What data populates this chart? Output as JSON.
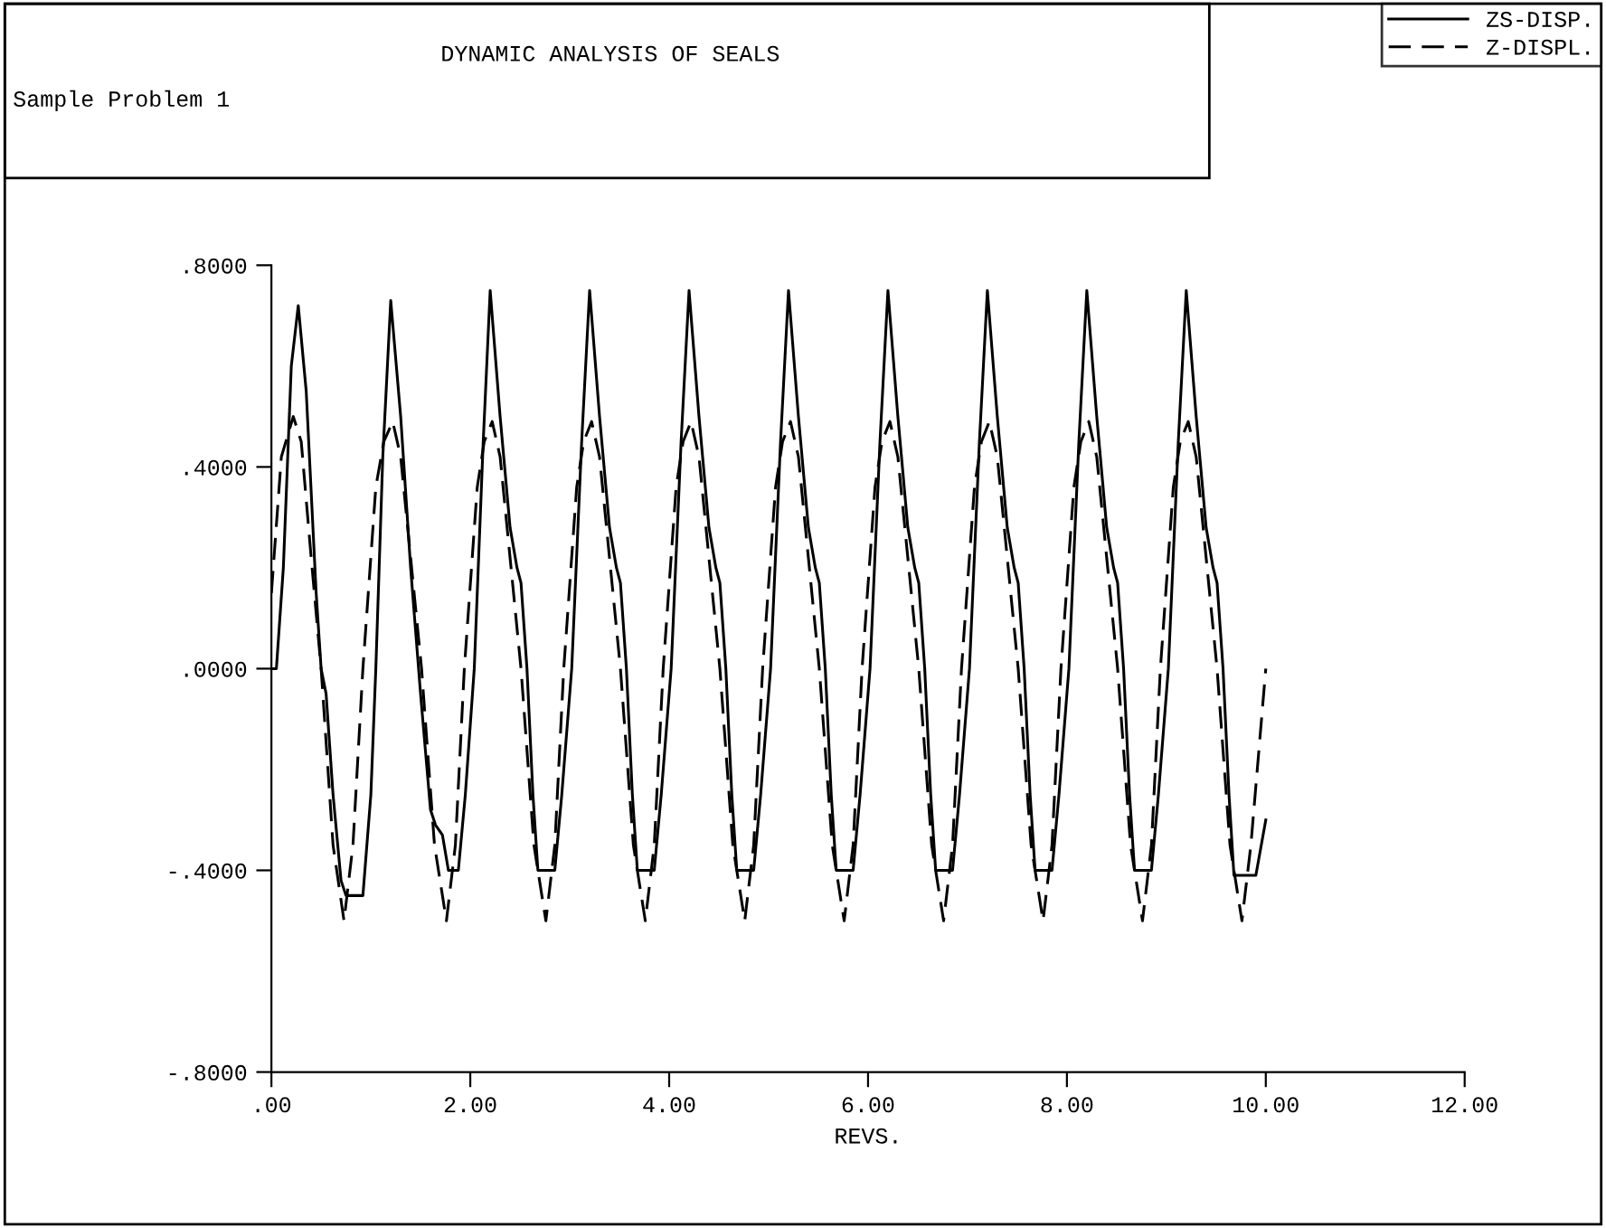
{
  "chart_data": {
    "type": "line",
    "title": "DYNAMIC ANALYSIS OF SEALS",
    "subtitle": "Sample Problem 1",
    "xlabel": "REVS.",
    "xlim": [
      0,
      12
    ],
    "xticks": [
      {
        "value": 0,
        "label": ".00"
      },
      {
        "value": 2,
        "label": "2.00"
      },
      {
        "value": 4,
        "label": "4.00"
      },
      {
        "value": 6,
        "label": "6.00"
      },
      {
        "value": 8,
        "label": "8.00"
      },
      {
        "value": 10,
        "label": "10.00"
      },
      {
        "value": 12,
        "label": "12.00"
      }
    ],
    "ylim": [
      -0.8,
      0.8
    ],
    "yticks": [
      {
        "value": -0.8,
        "label": "-.8000"
      },
      {
        "value": -0.4,
        "label": "-.4000"
      },
      {
        "value": 0,
        "label": ".0000"
      },
      {
        "value": 0.4,
        "label": ".4000"
      },
      {
        "value": 0.8,
        "label": ".8000"
      }
    ],
    "grid": false,
    "legend": "top right",
    "marker": "none",
    "series": [
      {
        "name": "ZS-DISP.",
        "color": "#000000",
        "line_style": "solid",
        "x": [
          0,
          0.05,
          0.12,
          0.2,
          0.27,
          0.35,
          0.45,
          0.5,
          0.55,
          0.62,
          0.7,
          0.75,
          0.92,
          1.0,
          1.05,
          1.12,
          1.2,
          1.3,
          1.4,
          1.5,
          1.6,
          1.65,
          1.72,
          1.78,
          1.88,
          1.95,
          2.04,
          2.13,
          2.2,
          2.3,
          2.4,
          2.47,
          2.51,
          2.57,
          2.63,
          2.68,
          2.85,
          2.92,
          3.02,
          3.12,
          3.2,
          3.3,
          3.4,
          3.47,
          3.51,
          3.57,
          3.63,
          3.68,
          3.85,
          3.92,
          4.02,
          4.12,
          4.2,
          4.3,
          4.4,
          4.47,
          4.51,
          4.57,
          4.63,
          4.68,
          4.85,
          4.92,
          5.02,
          5.12,
          5.2,
          5.3,
          5.4,
          5.47,
          5.51,
          5.57,
          5.63,
          5.68,
          5.85,
          5.92,
          6.02,
          6.12,
          6.2,
          6.3,
          6.4,
          6.47,
          6.51,
          6.57,
          6.63,
          6.68,
          6.85,
          6.92,
          7.02,
          7.12,
          7.2,
          7.3,
          7.4,
          7.47,
          7.51,
          7.57,
          7.63,
          7.68,
          7.85,
          7.92,
          8.02,
          8.12,
          8.2,
          8.3,
          8.4,
          8.47,
          8.51,
          8.57,
          8.63,
          8.68,
          8.85,
          8.92,
          9.02,
          9.12,
          9.2,
          9.3,
          9.4,
          9.47,
          9.51,
          9.57,
          9.63,
          9.68,
          9.9,
          10.0
        ],
        "values": [
          0,
          0,
          0.2,
          0.6,
          0.72,
          0.55,
          0.15,
          0,
          -0.05,
          -0.25,
          -0.42,
          -0.45,
          -0.45,
          -0.25,
          0,
          0.42,
          0.73,
          0.5,
          0.2,
          -0.05,
          -0.28,
          -0.31,
          -0.33,
          -0.4,
          -0.4,
          -0.25,
          0,
          0.45,
          0.75,
          0.5,
          0.28,
          0.2,
          0.17,
          0,
          -0.25,
          -0.4,
          -0.4,
          -0.25,
          0,
          0.45,
          0.75,
          0.5,
          0.28,
          0.2,
          0.17,
          0,
          -0.25,
          -0.4,
          -0.4,
          -0.25,
          0,
          0.45,
          0.75,
          0.5,
          0.28,
          0.2,
          0.17,
          0,
          -0.25,
          -0.4,
          -0.4,
          -0.25,
          0,
          0.45,
          0.75,
          0.5,
          0.28,
          0.2,
          0.17,
          0,
          -0.25,
          -0.4,
          -0.4,
          -0.25,
          0,
          0.45,
          0.75,
          0.5,
          0.28,
          0.2,
          0.17,
          0,
          -0.25,
          -0.4,
          -0.4,
          -0.25,
          0,
          0.45,
          0.75,
          0.5,
          0.28,
          0.2,
          0.17,
          0,
          -0.25,
          -0.4,
          -0.4,
          -0.25,
          0,
          0.45,
          0.75,
          0.5,
          0.28,
          0.2,
          0.17,
          0,
          -0.25,
          -0.4,
          -0.4,
          -0.25,
          0,
          0.45,
          0.75,
          0.5,
          0.28,
          0.2,
          0.17,
          0,
          -0.25,
          -0.41,
          -0.41,
          -0.3
        ]
      },
      {
        "name": "Z-DISPL.",
        "color": "#000000",
        "line_style": "dashed",
        "x": [
          0,
          0.1,
          0.22,
          0.3,
          0.4,
          0.5,
          0.62,
          0.73,
          0.82,
          0.92,
          1.05,
          1.13,
          1.22,
          1.3,
          1.4,
          1.51,
          1.64,
          1.76,
          1.85,
          1.94,
          2.07,
          2.14,
          2.22,
          2.3,
          2.4,
          2.51,
          2.64,
          2.76,
          2.85,
          2.94,
          3.07,
          3.14,
          3.22,
          3.3,
          3.4,
          3.51,
          3.64,
          3.76,
          3.85,
          3.94,
          4.07,
          4.14,
          4.22,
          4.3,
          4.4,
          4.51,
          4.64,
          4.76,
          4.85,
          4.94,
          5.07,
          5.14,
          5.22,
          5.3,
          5.4,
          5.51,
          5.64,
          5.76,
          5.85,
          5.94,
          6.07,
          6.14,
          6.22,
          6.3,
          6.4,
          6.51,
          6.64,
          6.76,
          6.85,
          6.94,
          7.07,
          7.14,
          7.22,
          7.3,
          7.4,
          7.51,
          7.64,
          7.76,
          7.85,
          7.94,
          8.07,
          8.14,
          8.22,
          8.3,
          8.4,
          8.51,
          8.64,
          8.76,
          8.85,
          8.94,
          9.07,
          9.14,
          9.22,
          9.3,
          9.4,
          9.51,
          9.64,
          9.76,
          9.85,
          10.0
        ],
        "values": [
          0.15,
          0.42,
          0.5,
          0.45,
          0.22,
          0,
          -0.35,
          -0.5,
          -0.35,
          0,
          0.36,
          0.45,
          0.49,
          0.42,
          0.22,
          0,
          -0.35,
          -0.5,
          -0.35,
          0,
          0.36,
          0.45,
          0.49,
          0.42,
          0.22,
          0,
          -0.35,
          -0.5,
          -0.35,
          0,
          0.36,
          0.45,
          0.49,
          0.42,
          0.22,
          0,
          -0.35,
          -0.5,
          -0.35,
          0,
          0.36,
          0.45,
          0.49,
          0.42,
          0.22,
          0,
          -0.35,
          -0.5,
          -0.35,
          0,
          0.36,
          0.45,
          0.49,
          0.42,
          0.22,
          0,
          -0.35,
          -0.5,
          -0.35,
          0,
          0.36,
          0.45,
          0.49,
          0.42,
          0.22,
          0,
          -0.35,
          -0.5,
          -0.35,
          0,
          0.36,
          0.45,
          0.49,
          0.42,
          0.22,
          0,
          -0.35,
          -0.5,
          -0.35,
          0,
          0.36,
          0.45,
          0.49,
          0.42,
          0.22,
          0,
          -0.35,
          -0.5,
          -0.35,
          0,
          0.36,
          0.45,
          0.49,
          0.42,
          0.22,
          0,
          -0.35,
          -0.5,
          -0.35,
          0
        ]
      }
    ]
  }
}
